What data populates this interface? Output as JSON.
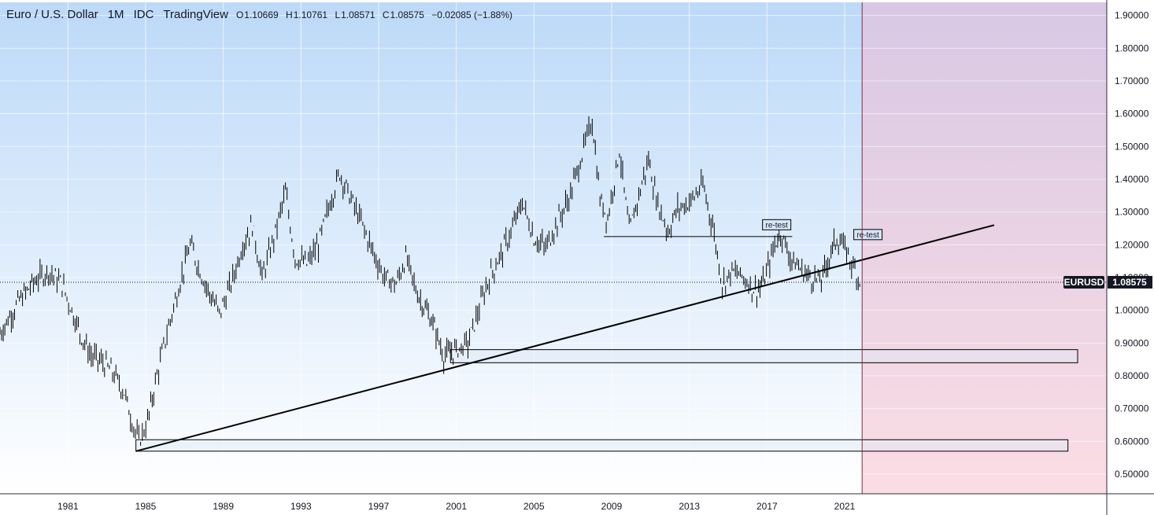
{
  "header": {
    "symbol": "Euro / U.S. Dollar",
    "interval": "1M",
    "exchange": "IDC",
    "source": "TradingView",
    "open_key": "O",
    "open": "1.10669",
    "high_key": "H",
    "high": "1.10761",
    "low_key": "L",
    "low": "1.08571",
    "close_key": "C",
    "close": "1.08575",
    "change": "−0.02085 (−1.88%)"
  },
  "colors": {
    "bg_top": "#bcd9f8",
    "bg_bottom": "#ffffff",
    "future_top": "#d8c8e4",
    "future_bottom": "#fbdde4",
    "candle": "#000000",
    "line": "#000000",
    "rect_fill": "#dfe9f6",
    "label_bg": "#131722"
  },
  "chart_data": {
    "type": "line",
    "title": "Euro / U.S. Dollar",
    "xlabel": "",
    "ylabel": "",
    "x_ticks": [
      "1981",
      "1985",
      "1989",
      "1993",
      "1997",
      "2001",
      "2005",
      "2009",
      "2013",
      "2017",
      "2021"
    ],
    "y_ticks": [
      "0.50000",
      "0.60000",
      "0.70000",
      "0.80000",
      "0.90000",
      "1.00000",
      "1.10000",
      "1.20000",
      "1.30000",
      "1.40000",
      "1.50000",
      "1.60000",
      "1.70000",
      "1.80000",
      "1.90000"
    ],
    "xlim": [
      1978.0,
      2035.0
    ],
    "ylim": [
      0.44,
      1.94
    ],
    "grid": true,
    "series": [
      {
        "values": [
          [
            1978.0,
            0.93
          ],
          [
            1979.0,
            1.03
          ],
          [
            1979.8,
            1.09
          ],
          [
            1980.5,
            1.12
          ],
          [
            1981.2,
            1.08
          ],
          [
            1981.7,
            1.0
          ],
          [
            1982.2,
            0.92
          ],
          [
            1982.7,
            0.86
          ],
          [
            1983.3,
            0.84
          ],
          [
            1983.8,
            0.81
          ],
          [
            1984.4,
            0.75
          ],
          [
            1984.8,
            0.66
          ],
          [
            1985.15,
            0.6
          ],
          [
            1985.6,
            0.66
          ],
          [
            1986.0,
            0.78
          ],
          [
            1986.6,
            0.93
          ],
          [
            1987.2,
            1.07
          ],
          [
            1987.8,
            1.2
          ],
          [
            1988.3,
            1.12
          ],
          [
            1988.8,
            1.05
          ],
          [
            1989.3,
            0.99
          ],
          [
            1989.9,
            1.08
          ],
          [
            1990.5,
            1.2
          ],
          [
            1991.0,
            1.26
          ],
          [
            1991.5,
            1.1
          ],
          [
            1992.1,
            1.22
          ],
          [
            1992.7,
            1.36
          ],
          [
            1993.2,
            1.16
          ],
          [
            1993.8,
            1.14
          ],
          [
            1994.4,
            1.2
          ],
          [
            1995.0,
            1.33
          ],
          [
            1995.5,
            1.42
          ],
          [
            1996.0,
            1.35
          ],
          [
            1996.6,
            1.27
          ],
          [
            1997.2,
            1.18
          ],
          [
            1997.8,
            1.1
          ],
          [
            1998.4,
            1.08
          ],
          [
            1998.9,
            1.16
          ],
          [
            1999.5,
            1.05
          ],
          [
            2000.3,
            0.96
          ],
          [
            2000.85,
            0.86
          ],
          [
            2001.5,
            0.88
          ],
          [
            2002.1,
            0.9
          ],
          [
            2002.6,
            0.99
          ],
          [
            2003.2,
            1.1
          ],
          [
            2003.8,
            1.17
          ],
          [
            2004.4,
            1.25
          ],
          [
            2004.9,
            1.33
          ],
          [
            2005.5,
            1.22
          ],
          [
            2006.1,
            1.19
          ],
          [
            2006.7,
            1.27
          ],
          [
            2007.3,
            1.34
          ],
          [
            2007.8,
            1.44
          ],
          [
            2008.5,
            1.58
          ],
          [
            2008.9,
            1.34
          ],
          [
            2009.3,
            1.28
          ],
          [
            2009.9,
            1.49
          ],
          [
            2010.4,
            1.24
          ],
          [
            2010.9,
            1.35
          ],
          [
            2011.4,
            1.46
          ],
          [
            2011.8,
            1.34
          ],
          [
            2012.4,
            1.24
          ],
          [
            2012.9,
            1.31
          ],
          [
            2013.5,
            1.33
          ],
          [
            2014.2,
            1.38
          ],
          [
            2014.7,
            1.26
          ],
          [
            2015.2,
            1.08
          ],
          [
            2015.7,
            1.12
          ],
          [
            2016.3,
            1.1
          ],
          [
            2016.9,
            1.06
          ],
          [
            2017.3,
            1.08
          ],
          [
            2017.9,
            1.2
          ],
          [
            2018.2,
            1.24
          ],
          [
            2018.7,
            1.16
          ],
          [
            2019.3,
            1.12
          ],
          [
            2019.8,
            1.1
          ],
          [
            2020.3,
            1.09
          ],
          [
            2020.8,
            1.18
          ],
          [
            2021.1,
            1.22
          ],
          [
            2021.6,
            1.18
          ],
          [
            2022.2,
            1.1
          ],
          [
            2022.35,
            1.09
          ]
        ]
      }
    ],
    "lines": [
      {
        "x1": 1985.0,
        "y1": 0.57,
        "x2": 2029.2,
        "y2": 1.26
      },
      {
        "x1": 2009.1,
        "y1": 1.225,
        "x2": 2018.8,
        "y2": 1.225
      }
    ],
    "zones": [
      {
        "x1": 2001.2,
        "y1": 0.84,
        "x2": 2033.5,
        "y2": 0.88
      },
      {
        "x1": 1985.0,
        "y1": 0.57,
        "x2": 2033.0,
        "y2": 0.605
      }
    ],
    "annotations": [
      {
        "text": "re-test",
        "x": 2018.0,
        "y": 1.26
      },
      {
        "text": "re-test",
        "x": 2022.7,
        "y": 1.23
      }
    ],
    "future_start": 2022.4,
    "last_price": {
      "symbol": "EURUSD",
      "value": "1.08575",
      "y": 1.08575
    }
  }
}
